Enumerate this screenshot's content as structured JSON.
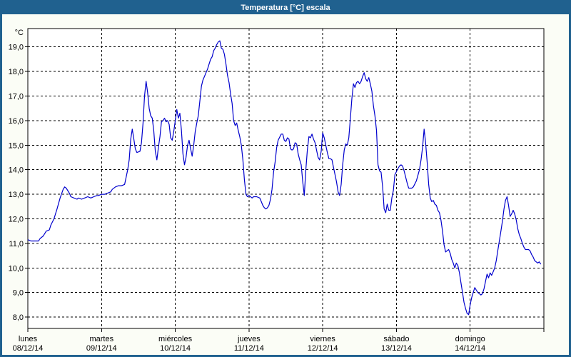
{
  "window": {
    "title": "Temperatura [°C] escala"
  },
  "colors": {
    "titlebar_bg": "#20618f",
    "titlebar_text": "#ffffff",
    "window_border": "#20618f",
    "page_background": "#fbfdf6",
    "plot_background": "#ffffff",
    "grid": "#000000",
    "line": "#0000cd"
  },
  "chart_data": {
    "type": "line",
    "title": "Temperatura [°C] escala",
    "grid": "dashed",
    "legend": "none",
    "y_axis": {
      "unit_label": "°C",
      "min": 8,
      "max": 19,
      "tick_values": [
        19,
        18,
        17,
        16,
        15,
        14,
        13,
        12,
        11,
        10,
        9,
        8
      ],
      "tick_labels": [
        "19,0",
        "18,0",
        "17,0",
        "16,0",
        "15,0",
        "14,0",
        "13,0",
        "12,0",
        "11,0",
        "10,0",
        "9,0",
        "8,0"
      ]
    },
    "x_axis": {
      "unit": "hours_from_start",
      "range_hours": [
        0,
        168
      ],
      "hours_per_day": 24,
      "days": [
        {
          "name": "lunes",
          "date": "08/12/14"
        },
        {
          "name": "martes",
          "date": "09/12/14"
        },
        {
          "name": "miércoles",
          "date": "10/12/14"
        },
        {
          "name": "jueves",
          "date": "11/12/14"
        },
        {
          "name": "viernes",
          "date": "12/12/14"
        },
        {
          "name": "sábado",
          "date": "13/12/14"
        },
        {
          "name": "domingo",
          "date": "14/12/14"
        }
      ]
    },
    "series": [
      {
        "name": "Temperatura",
        "color": "#0000cd",
        "points_hours_temp": [
          [
            0,
            11.15
          ],
          [
            1,
            11.1
          ],
          [
            2,
            11.1
          ],
          [
            3.5,
            11.1
          ],
          [
            4,
            11.2
          ],
          [
            5,
            11.3
          ],
          [
            6,
            11.5
          ],
          [
            7,
            11.55
          ],
          [
            7.5,
            11.75
          ],
          [
            8.5,
            12.0
          ],
          [
            9.5,
            12.4
          ],
          [
            10.5,
            12.85
          ],
          [
            11.5,
            13.2
          ],
          [
            12,
            13.3
          ],
          [
            12.5,
            13.25
          ],
          [
            13.5,
            13.05
          ],
          [
            14,
            12.9
          ],
          [
            15,
            12.85
          ],
          [
            16,
            12.8
          ],
          [
            16.5,
            12.85
          ],
          [
            17.5,
            12.8
          ],
          [
            18.5,
            12.85
          ],
          [
            19.5,
            12.9
          ],
          [
            20.5,
            12.85
          ],
          [
            21.5,
            12.9
          ],
          [
            22.5,
            12.95
          ],
          [
            23,
            12.95
          ],
          [
            24,
            13.0
          ],
          [
            25,
            13.0
          ],
          [
            26,
            13.05
          ],
          [
            27,
            13.1
          ],
          [
            27.5,
            13.2
          ],
          [
            28.5,
            13.3
          ],
          [
            29.5,
            13.35
          ],
          [
            30.5,
            13.35
          ],
          [
            31.5,
            13.4
          ],
          [
            32.5,
            14.0
          ],
          [
            33,
            14.4
          ],
          [
            33.5,
            15.25
          ],
          [
            34,
            15.65
          ],
          [
            34.5,
            15.25
          ],
          [
            35,
            14.85
          ],
          [
            35.5,
            14.7
          ],
          [
            36.5,
            14.75
          ],
          [
            37,
            15.1
          ],
          [
            37.5,
            15.9
          ],
          [
            38,
            17.0
          ],
          [
            38.5,
            17.6
          ],
          [
            39,
            17.15
          ],
          [
            39.5,
            16.5
          ],
          [
            40,
            16.2
          ],
          [
            40.5,
            16.1
          ],
          [
            41,
            15.6
          ],
          [
            41.5,
            14.75
          ],
          [
            42,
            14.4
          ],
          [
            42.5,
            14.9
          ],
          [
            43,
            15.35
          ],
          [
            43.5,
            15.95
          ],
          [
            44,
            16.0
          ],
          [
            44.5,
            16.1
          ],
          [
            45,
            15.95
          ],
          [
            45.5,
            16.0
          ],
          [
            46,
            15.85
          ],
          [
            46.5,
            15.3
          ],
          [
            47,
            15.2
          ],
          [
            47.5,
            15.55
          ],
          [
            48,
            16.0
          ],
          [
            48.5,
            16.45
          ],
          [
            49,
            16.1
          ],
          [
            49.5,
            16.3
          ],
          [
            50,
            15.6
          ],
          [
            50.5,
            14.65
          ],
          [
            51,
            14.2
          ],
          [
            51.5,
            14.5
          ],
          [
            52,
            15.0
          ],
          [
            52.5,
            15.2
          ],
          [
            53,
            14.85
          ],
          [
            53.5,
            14.55
          ],
          [
            54,
            15.0
          ],
          [
            54.5,
            15.55
          ],
          [
            55,
            15.9
          ],
          [
            55.5,
            16.2
          ],
          [
            56,
            16.8
          ],
          [
            56.5,
            17.4
          ],
          [
            57,
            17.65
          ],
          [
            57.5,
            17.8
          ],
          [
            58,
            17.95
          ],
          [
            58.5,
            18.1
          ],
          [
            59,
            18.3
          ],
          [
            59.5,
            18.5
          ],
          [
            60,
            18.6
          ],
          [
            60.5,
            18.85
          ],
          [
            61,
            18.95
          ],
          [
            61.5,
            19.1
          ],
          [
            62,
            19.2
          ],
          [
            62.5,
            19.25
          ],
          [
            63,
            18.95
          ],
          [
            63.5,
            18.9
          ],
          [
            64,
            18.7
          ],
          [
            64.5,
            18.3
          ],
          [
            65,
            17.85
          ],
          [
            65.5,
            17.55
          ],
          [
            66,
            17.1
          ],
          [
            66.5,
            16.7
          ],
          [
            67,
            16.0
          ],
          [
            67.5,
            15.8
          ],
          [
            68,
            15.9
          ],
          [
            68.5,
            15.6
          ],
          [
            69,
            15.35
          ],
          [
            69.5,
            15.0
          ],
          [
            70,
            14.4
          ],
          [
            70.5,
            13.6
          ],
          [
            71,
            13.0
          ],
          [
            71.5,
            12.9
          ],
          [
            72,
            12.95
          ],
          [
            72.5,
            12.9
          ],
          [
            73,
            12.85
          ],
          [
            73.5,
            12.9
          ],
          [
            74.5,
            12.9
          ],
          [
            75.5,
            12.85
          ],
          [
            76,
            12.7
          ],
          [
            76.5,
            12.55
          ],
          [
            77,
            12.45
          ],
          [
            77.5,
            12.4
          ],
          [
            78,
            12.45
          ],
          [
            78.5,
            12.55
          ],
          [
            79,
            12.8
          ],
          [
            79.5,
            13.2
          ],
          [
            80,
            13.9
          ],
          [
            80.5,
            14.3
          ],
          [
            81,
            14.9
          ],
          [
            81.5,
            15.2
          ],
          [
            82.5,
            15.45
          ],
          [
            83,
            15.45
          ],
          [
            83.5,
            15.2
          ],
          [
            84,
            15.15
          ],
          [
            84.5,
            15.3
          ],
          [
            85,
            15.25
          ],
          [
            85.5,
            14.85
          ],
          [
            86,
            14.8
          ],
          [
            86.5,
            14.85
          ],
          [
            87,
            15.1
          ],
          [
            87.5,
            15.05
          ],
          [
            88,
            14.65
          ],
          [
            88.5,
            14.4
          ],
          [
            89,
            14.2
          ],
          [
            89.5,
            13.5
          ],
          [
            90,
            12.95
          ],
          [
            90.5,
            14.0
          ],
          [
            91,
            14.8
          ],
          [
            91.5,
            15.35
          ],
          [
            92,
            15.3
          ],
          [
            92.5,
            15.45
          ],
          [
            93,
            15.25
          ],
          [
            93.5,
            15.1
          ],
          [
            94,
            14.8
          ],
          [
            94.5,
            14.5
          ],
          [
            95,
            14.4
          ],
          [
            95.5,
            14.75
          ],
          [
            96,
            15.5
          ],
          [
            96.5,
            15.3
          ],
          [
            97,
            15.0
          ],
          [
            97.5,
            14.7
          ],
          [
            98,
            14.45
          ],
          [
            98.5,
            14.45
          ],
          [
            99,
            14.4
          ],
          [
            99.5,
            14.1
          ],
          [
            100,
            13.8
          ],
          [
            100.5,
            13.5
          ],
          [
            101,
            13.1
          ],
          [
            101.5,
            12.95
          ],
          [
            102,
            13.4
          ],
          [
            102.5,
            14.2
          ],
          [
            103,
            14.8
          ],
          [
            103.5,
            15.05
          ],
          [
            104,
            15.0
          ],
          [
            104.5,
            15.3
          ],
          [
            105,
            16.1
          ],
          [
            105.5,
            16.9
          ],
          [
            106,
            17.5
          ],
          [
            106.5,
            17.35
          ],
          [
            107,
            17.55
          ],
          [
            107.5,
            17.6
          ],
          [
            108,
            17.5
          ],
          [
            108.5,
            17.6
          ],
          [
            109,
            17.8
          ],
          [
            109.5,
            17.95
          ],
          [
            110,
            17.7
          ],
          [
            110.5,
            17.6
          ],
          [
            111,
            17.75
          ],
          [
            111.5,
            17.5
          ],
          [
            112,
            17.2
          ],
          [
            112.5,
            16.6
          ],
          [
            113,
            16.2
          ],
          [
            113.5,
            15.6
          ],
          [
            114,
            14.2
          ],
          [
            114.5,
            13.95
          ],
          [
            115,
            13.9
          ],
          [
            115.5,
            13.3
          ],
          [
            116,
            12.4
          ],
          [
            116.5,
            12.25
          ],
          [
            117,
            12.6
          ],
          [
            117.5,
            12.35
          ],
          [
            118,
            12.35
          ],
          [
            118.5,
            12.85
          ],
          [
            119,
            13.15
          ],
          [
            119.5,
            13.8
          ],
          [
            120.5,
            14.05
          ],
          [
            121,
            14.15
          ],
          [
            121.5,
            14.2
          ],
          [
            122,
            14.15
          ],
          [
            122.5,
            13.95
          ],
          [
            123.5,
            13.45
          ],
          [
            124,
            13.25
          ],
          [
            125,
            13.25
          ],
          [
            125.5,
            13.3
          ],
          [
            126.5,
            13.55
          ],
          [
            127.5,
            14.0
          ],
          [
            128,
            14.4
          ],
          [
            128.5,
            14.9
          ],
          [
            129,
            15.65
          ],
          [
            129.5,
            15.1
          ],
          [
            130,
            14.3
          ],
          [
            130.5,
            13.4
          ],
          [
            131,
            12.85
          ],
          [
            131.5,
            12.7
          ],
          [
            132,
            12.75
          ],
          [
            132.5,
            12.6
          ],
          [
            133,
            12.55
          ],
          [
            133.5,
            12.35
          ],
          [
            134,
            12.25
          ],
          [
            134.5,
            11.95
          ],
          [
            135,
            11.5
          ],
          [
            135.5,
            10.95
          ],
          [
            136,
            10.65
          ],
          [
            136.5,
            10.7
          ],
          [
            137,
            10.75
          ],
          [
            137.5,
            10.6
          ],
          [
            138,
            10.35
          ],
          [
            138.5,
            10.2
          ],
          [
            139,
            10.0
          ],
          [
            139.5,
            10.2
          ],
          [
            140,
            10.1
          ],
          [
            140.5,
            9.8
          ],
          [
            141,
            9.4
          ],
          [
            141.5,
            9.0
          ],
          [
            142,
            8.6
          ],
          [
            142.5,
            8.35
          ],
          [
            143,
            8.15
          ],
          [
            143.5,
            8.1
          ],
          [
            144,
            8.5
          ],
          [
            144.5,
            8.8
          ],
          [
            145,
            9.0
          ],
          [
            145.5,
            9.2
          ],
          [
            146,
            9.1
          ],
          [
            146.5,
            9.0
          ],
          [
            147,
            8.95
          ],
          [
            147.5,
            8.9
          ],
          [
            148,
            8.95
          ],
          [
            148.5,
            9.15
          ],
          [
            149,
            9.45
          ],
          [
            149.5,
            9.75
          ],
          [
            150,
            9.6
          ],
          [
            150.5,
            9.8
          ],
          [
            151,
            9.7
          ],
          [
            151.5,
            9.85
          ],
          [
            152,
            10.0
          ],
          [
            152.5,
            10.3
          ],
          [
            153,
            10.7
          ],
          [
            153.5,
            11.1
          ],
          [
            154,
            11.5
          ],
          [
            154.5,
            11.9
          ],
          [
            155,
            12.4
          ],
          [
            155.5,
            12.75
          ],
          [
            156,
            12.9
          ],
          [
            156.5,
            12.55
          ],
          [
            157,
            12.1
          ],
          [
            157.5,
            12.2
          ],
          [
            158,
            12.35
          ],
          [
            158.5,
            12.2
          ],
          [
            159,
            11.95
          ],
          [
            159.5,
            11.6
          ],
          [
            160,
            11.35
          ],
          [
            160.5,
            11.2
          ],
          [
            161,
            11.0
          ],
          [
            161.5,
            10.85
          ],
          [
            162,
            10.75
          ],
          [
            163,
            10.75
          ],
          [
            163.5,
            10.7
          ],
          [
            164,
            10.55
          ],
          [
            164.5,
            10.45
          ],
          [
            165,
            10.3
          ],
          [
            165.5,
            10.25
          ],
          [
            166,
            10.2
          ],
          [
            166.5,
            10.25
          ],
          [
            167,
            10.15
          ]
        ]
      }
    ]
  }
}
